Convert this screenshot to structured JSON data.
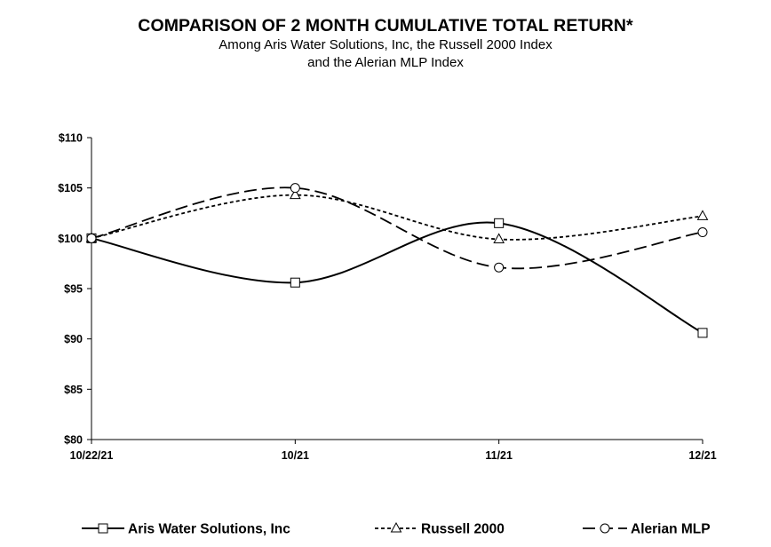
{
  "chart_data": {
    "type": "line",
    "title": "COMPARISON OF 2 MONTH CUMULATIVE TOTAL RETURN*",
    "subtitle": [
      "Among Aris Water Solutions, Inc, the Russell 2000 Index",
      "and the Alerian MLP Index"
    ],
    "categories": [
      "10/22/21",
      "10/21",
      "11/21",
      "12/21"
    ],
    "ylim": [
      80,
      110
    ],
    "yticks": [
      80,
      85,
      90,
      95,
      100,
      105,
      110
    ],
    "ytick_labels": [
      "$80",
      "$85",
      "$90",
      "$95",
      "$100",
      "$105",
      "$110"
    ],
    "grid": false,
    "legend_position": "bottom",
    "series": [
      {
        "name": "Aris Water Solutions, Inc",
        "values": [
          100,
          95.6,
          101.5,
          90.6
        ],
        "marker": "square",
        "dash": "solid",
        "color": "#000000"
      },
      {
        "name": "Russell 2000",
        "values": [
          100,
          104.3,
          99.9,
          102.2
        ],
        "marker": "triangle",
        "dash": "short-dash",
        "color": "#000000"
      },
      {
        "name": "Alerian MLP",
        "values": [
          100,
          105.0,
          97.1,
          100.6
        ],
        "marker": "circle",
        "dash": "long-dash",
        "color": "#000000"
      }
    ]
  }
}
